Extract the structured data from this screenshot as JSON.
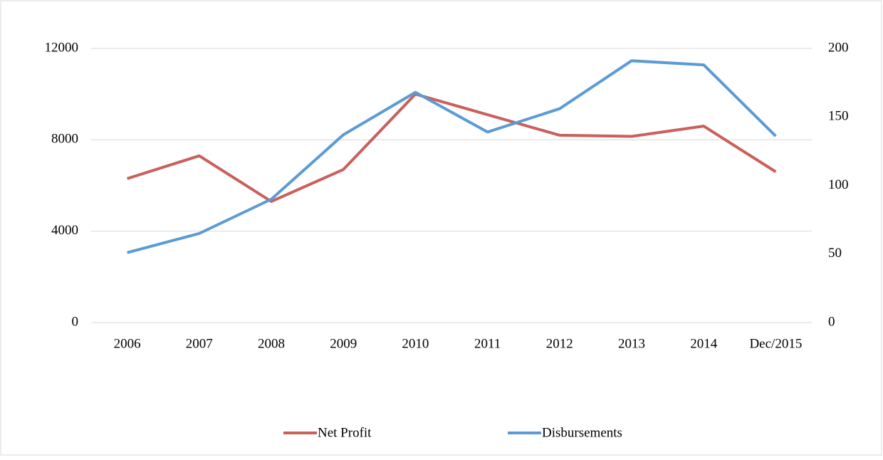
{
  "chart_data": {
    "type": "line",
    "categories": [
      "2006",
      "2007",
      "2008",
      "2009",
      "2010",
      "2011",
      "2012",
      "2013",
      "2014",
      "Dec/2015"
    ],
    "series": [
      {
        "name": "Net Profit",
        "color": "#c9605c",
        "values": [
          6300,
          7300,
          5300,
          6700,
          10000,
          9100,
          8200,
          8150,
          8600,
          6600
        ]
      },
      {
        "name": "Disbursements",
        "color": "#5b9bd5",
        "axis": "y2",
        "values": [
          51,
          65,
          90,
          137,
          168,
          139,
          156,
          191,
          188,
          136
        ]
      }
    ],
    "ylim": [
      0,
      12000
    ],
    "yticks": [
      0,
      4000,
      8000,
      12000
    ],
    "y2lim": [
      0,
      200
    ],
    "y2ticks": [
      0,
      50,
      100,
      150,
      200
    ],
    "grid": true,
    "legend": "bottom"
  }
}
